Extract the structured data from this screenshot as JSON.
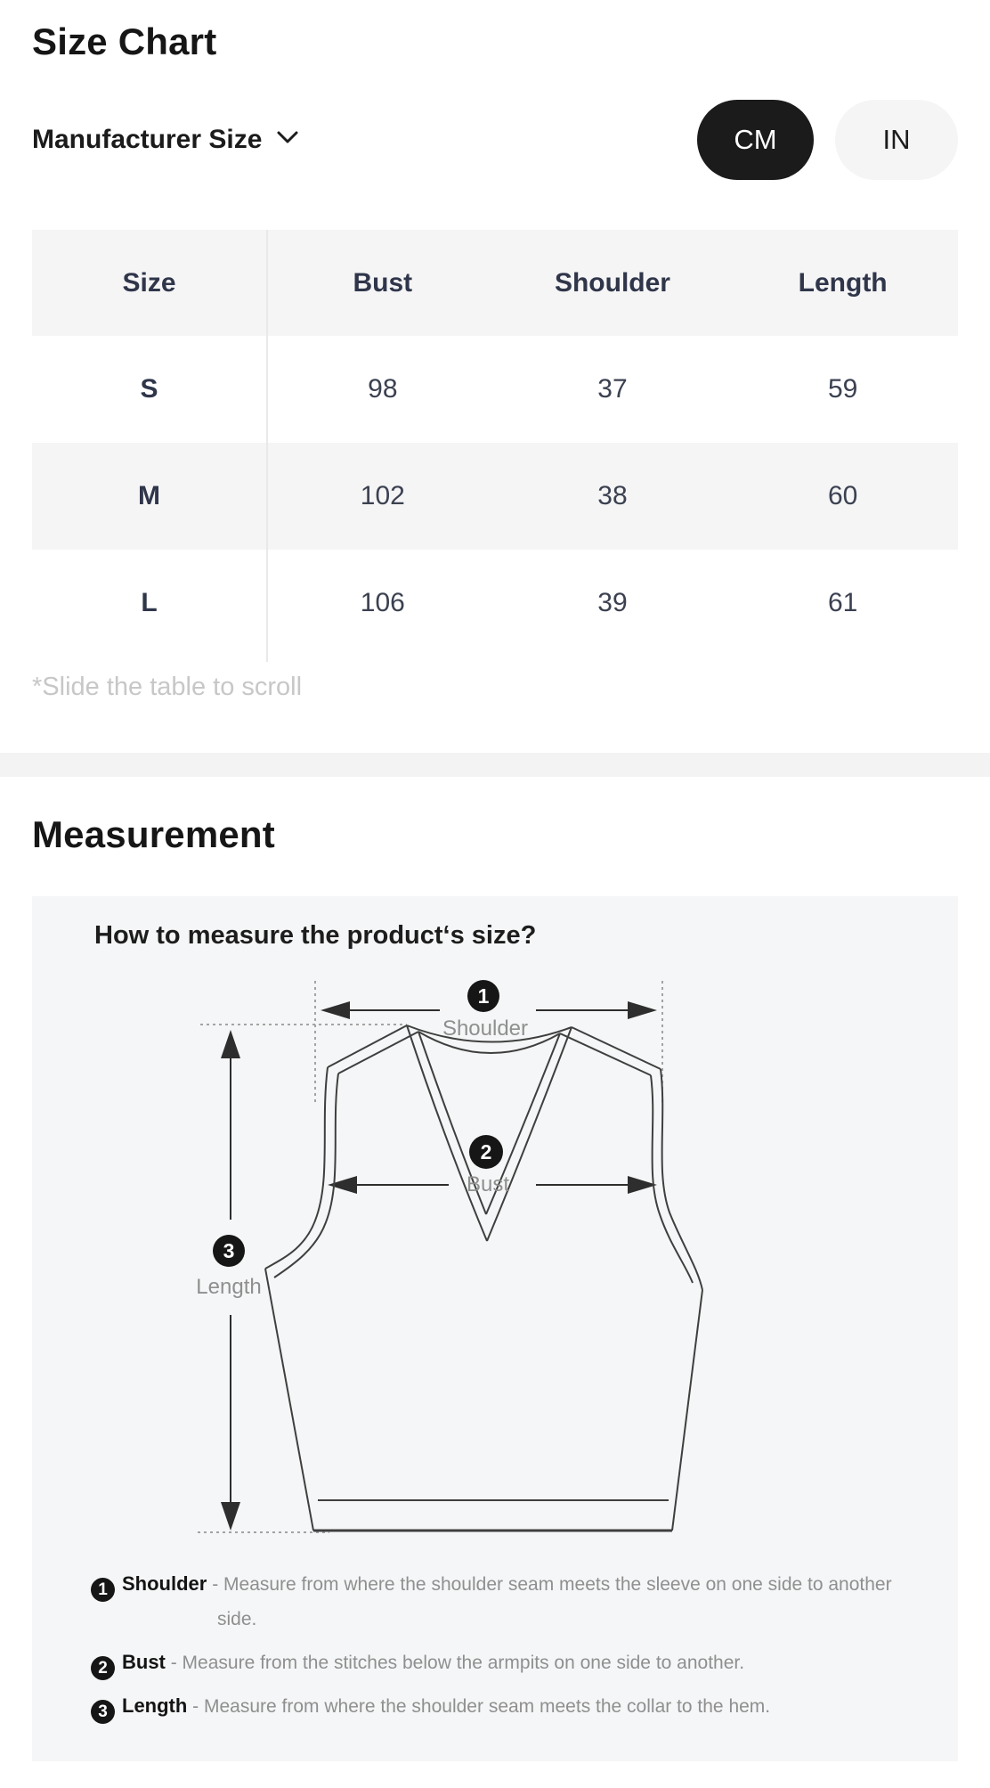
{
  "size_chart": {
    "title": "Size Chart",
    "selector": {
      "label": "Manufacturer Size",
      "icon": "chevron-down"
    },
    "unit_toggle": {
      "cm": {
        "label": "CM",
        "active": true
      },
      "in": {
        "label": "IN",
        "active": false
      }
    },
    "table": {
      "columns": [
        "Size",
        "Bust",
        "Shoulder",
        "Length"
      ],
      "rows": [
        {
          "size": "S",
          "bust": "98",
          "shoulder": "37",
          "length": "59"
        },
        {
          "size": "M",
          "bust": "102",
          "shoulder": "38",
          "length": "60"
        },
        {
          "size": "L",
          "bust": "106",
          "shoulder": "39",
          "length": "61"
        }
      ]
    },
    "scroll_hint": "*Slide the table to scroll"
  },
  "measurement": {
    "title": "Measurement",
    "question": "How to measure the product‘s size?",
    "diagram": {
      "badges": [
        {
          "num": "1",
          "label": "Shoulder"
        },
        {
          "num": "2",
          "label": "Bust"
        },
        {
          "num": "3",
          "label": "Length"
        }
      ]
    },
    "notes": [
      {
        "num": "1",
        "label": "Shoulder",
        "desc": "- Measure from where the shoulder seam meets the sleeve on one side to another side."
      },
      {
        "num": "2",
        "label": "Bust",
        "desc": "- Measure from the stitches below the armpits on one side to another."
      },
      {
        "num": "3",
        "label": "Length",
        "desc": "- Measure from where the shoulder seam meets the collar to the hem."
      }
    ]
  },
  "colors": {
    "pill_active_bg": "#1b1b1b",
    "pill_active_text": "#ffffff",
    "pill_inactive_bg": "#f5f5f6",
    "table_stripe": "#f5f5f6",
    "table_text": "#3b4150",
    "table_divider": "#e9e9ea",
    "hint_text": "#c7c7c9",
    "section_band": "#f3f3f4",
    "panel_bg": "#f5f6f7",
    "diagram_line": "#3f3f3f",
    "diagram_label": "#8f8f8f",
    "badge_bg": "#161616"
  }
}
